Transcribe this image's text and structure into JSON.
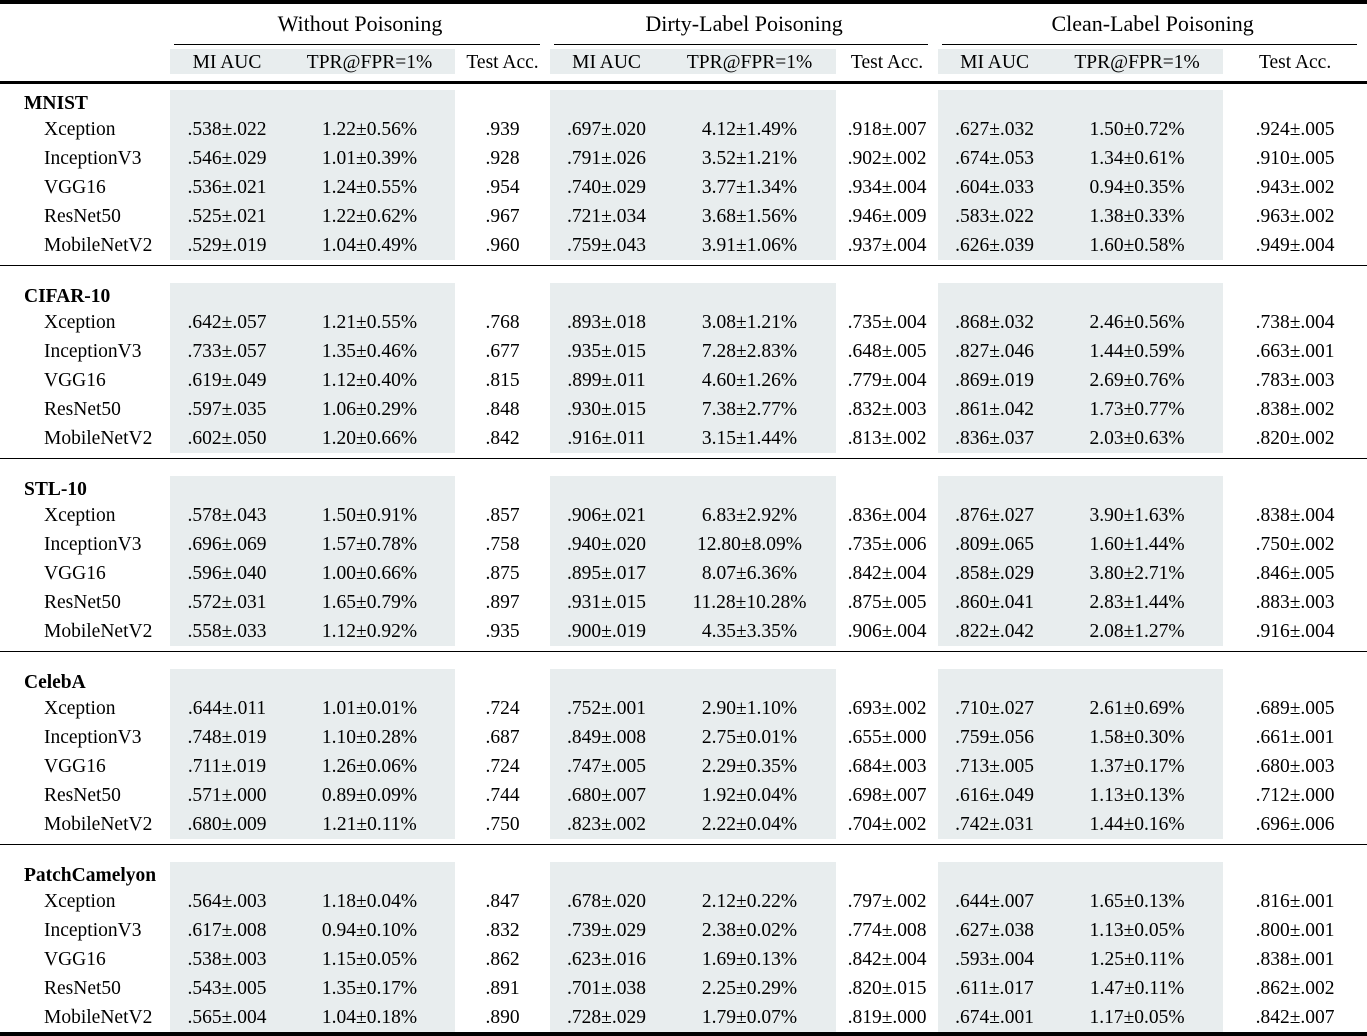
{
  "colors": {
    "shade": "#e8edee",
    "rule": "#000000"
  },
  "header": {
    "groups": [
      {
        "label": "Without Poisoning"
      },
      {
        "label": "Dirty-Label Poisoning"
      },
      {
        "label": "Clean-Label Poisoning"
      }
    ],
    "subcolumns": [
      "MI AUC",
      "TPR@FPR=1%",
      "Test Acc."
    ]
  },
  "sections": [
    {
      "dataset": "MNIST",
      "rows": [
        {
          "model": "Xception",
          "values": [
            ".538±.022",
            "1.22±0.56%",
            ".939",
            ".697±.020",
            "4.12±1.49%",
            ".918±.007",
            ".627±.032",
            "1.50±0.72%",
            ".924±.005"
          ]
        },
        {
          "model": "InceptionV3",
          "values": [
            ".546±.029",
            "1.01±0.39%",
            ".928",
            ".791±.026",
            "3.52±1.21%",
            ".902±.002",
            ".674±.053",
            "1.34±0.61%",
            ".910±.005"
          ]
        },
        {
          "model": "VGG16",
          "values": [
            ".536±.021",
            "1.24±0.55%",
            ".954",
            ".740±.029",
            "3.77±1.34%",
            ".934±.004",
            ".604±.033",
            "0.94±0.35%",
            ".943±.002"
          ]
        },
        {
          "model": "ResNet50",
          "values": [
            ".525±.021",
            "1.22±0.62%",
            ".967",
            ".721±.034",
            "3.68±1.56%",
            ".946±.009",
            ".583±.022",
            "1.38±0.33%",
            ".963±.002"
          ]
        },
        {
          "model": "MobileNetV2",
          "values": [
            ".529±.019",
            "1.04±0.49%",
            ".960",
            ".759±.043",
            "3.91±1.06%",
            ".937±.004",
            ".626±.039",
            "1.60±0.58%",
            ".949±.004"
          ]
        }
      ]
    },
    {
      "dataset": "CIFAR-10",
      "rows": [
        {
          "model": "Xception",
          "values": [
            ".642±.057",
            "1.21±0.55%",
            ".768",
            ".893±.018",
            "3.08±1.21%",
            ".735±.004",
            ".868±.032",
            "2.46±0.56%",
            ".738±.004"
          ]
        },
        {
          "model": "InceptionV3",
          "values": [
            ".733±.057",
            "1.35±0.46%",
            ".677",
            ".935±.015",
            "7.28±2.83%",
            ".648±.005",
            ".827±.046",
            "1.44±0.59%",
            ".663±.001"
          ]
        },
        {
          "model": "VGG16",
          "values": [
            ".619±.049",
            "1.12±0.40%",
            ".815",
            ".899±.011",
            "4.60±1.26%",
            ".779±.004",
            ".869±.019",
            "2.69±0.76%",
            ".783±.003"
          ]
        },
        {
          "model": "ResNet50",
          "values": [
            ".597±.035",
            "1.06±0.29%",
            ".848",
            ".930±.015",
            "7.38±2.77%",
            ".832±.003",
            ".861±.042",
            "1.73±0.77%",
            ".838±.002"
          ]
        },
        {
          "model": "MobileNetV2",
          "values": [
            ".602±.050",
            "1.20±0.66%",
            ".842",
            ".916±.011",
            "3.15±1.44%",
            ".813±.002",
            ".836±.037",
            "2.03±0.63%",
            ".820±.002"
          ]
        }
      ]
    },
    {
      "dataset": "STL-10",
      "rows": [
        {
          "model": "Xception",
          "values": [
            ".578±.043",
            "1.50±0.91%",
            ".857",
            ".906±.021",
            "6.83±2.92%",
            ".836±.004",
            ".876±.027",
            "3.90±1.63%",
            ".838±.004"
          ]
        },
        {
          "model": "InceptionV3",
          "values": [
            ".696±.069",
            "1.57±0.78%",
            ".758",
            ".940±.020",
            "12.80±8.09%",
            ".735±.006",
            ".809±.065",
            "1.60±1.44%",
            ".750±.002"
          ]
        },
        {
          "model": "VGG16",
          "values": [
            ".596±.040",
            "1.00±0.66%",
            ".875",
            ".895±.017",
            "8.07±6.36%",
            ".842±.004",
            ".858±.029",
            "3.80±2.71%",
            ".846±.005"
          ]
        },
        {
          "model": "ResNet50",
          "values": [
            ".572±.031",
            "1.65±0.79%",
            ".897",
            ".931±.015",
            "11.28±10.28%",
            ".875±.005",
            ".860±.041",
            "2.83±1.44%",
            ".883±.003"
          ]
        },
        {
          "model": "MobileNetV2",
          "values": [
            ".558±.033",
            "1.12±0.92%",
            ".935",
            ".900±.019",
            "4.35±3.35%",
            ".906±.004",
            ".822±.042",
            "2.08±1.27%",
            ".916±.004"
          ]
        }
      ]
    },
    {
      "dataset": "CelebA",
      "rows": [
        {
          "model": "Xception",
          "values": [
            ".644±.011",
            "1.01±0.01%",
            ".724",
            ".752±.001",
            "2.90±1.10%",
            ".693±.002",
            ".710±.027",
            "2.61±0.69%",
            ".689±.005"
          ]
        },
        {
          "model": "InceptionV3",
          "values": [
            ".748±.019",
            "1.10±0.28%",
            ".687",
            ".849±.008",
            "2.75±0.01%",
            ".655±.000",
            ".759±.056",
            "1.58±0.30%",
            ".661±.001"
          ]
        },
        {
          "model": "VGG16",
          "values": [
            ".711±.019",
            "1.26±0.06%",
            ".724",
            ".747±.005",
            "2.29±0.35%",
            ".684±.003",
            ".713±.005",
            "1.37±0.17%",
            ".680±.003"
          ]
        },
        {
          "model": "ResNet50",
          "values": [
            ".571±.000",
            "0.89±0.09%",
            ".744",
            ".680±.007",
            "1.92±0.04%",
            ".698±.007",
            ".616±.049",
            "1.13±0.13%",
            ".712±.000"
          ]
        },
        {
          "model": "MobileNetV2",
          "values": [
            ".680±.009",
            "1.21±0.11%",
            ".750",
            ".823±.002",
            "2.22±0.04%",
            ".704±.002",
            ".742±.031",
            "1.44±0.16%",
            ".696±.006"
          ]
        }
      ]
    },
    {
      "dataset": "PatchCamelyon",
      "rows": [
        {
          "model": "Xception",
          "values": [
            ".564±.003",
            "1.18±0.04%",
            ".847",
            ".678±.020",
            "2.12±0.22%",
            ".797±.002",
            ".644±.007",
            "1.65±0.13%",
            ".816±.001"
          ]
        },
        {
          "model": "InceptionV3",
          "values": [
            ".617±.008",
            "0.94±0.10%",
            ".832",
            ".739±.029",
            "2.38±0.02%",
            ".774±.008",
            ".627±.038",
            "1.13±0.05%",
            ".800±.001"
          ]
        },
        {
          "model": "VGG16",
          "values": [
            ".538±.003",
            "1.15±0.05%",
            ".862",
            ".623±.016",
            "1.69±0.13%",
            ".842±.004",
            ".593±.004",
            "1.25±0.11%",
            ".838±.001"
          ]
        },
        {
          "model": "ResNet50",
          "values": [
            ".543±.005",
            "1.35±0.17%",
            ".891",
            ".701±.038",
            "2.25±0.29%",
            ".820±.015",
            ".611±.017",
            "1.47±0.11%",
            ".862±.002"
          ]
        },
        {
          "model": "MobileNetV2",
          "values": [
            ".565±.004",
            "1.04±0.18%",
            ".890",
            ".728±.029",
            "1.79±0.07%",
            ".819±.000",
            ".674±.001",
            "1.17±0.05%",
            ".842±.007"
          ]
        }
      ]
    }
  ]
}
